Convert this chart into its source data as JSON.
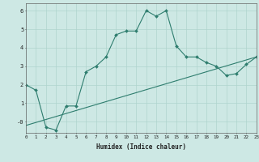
{
  "xlabel": "Humidex (Indice chaleur)",
  "line_color": "#2e7d6e",
  "bg_color": "#cde8e4",
  "grid_color": "#afd4ce",
  "curve1_x": [
    0,
    1,
    2,
    3,
    4,
    5,
    6,
    7,
    8,
    9,
    10,
    11,
    12,
    13,
    14,
    15,
    16,
    17,
    18,
    19,
    20,
    21,
    22,
    23
  ],
  "curve1_y": [
    2.0,
    1.7,
    -0.3,
    -0.45,
    0.85,
    0.85,
    2.7,
    3.0,
    3.5,
    4.7,
    4.9,
    4.9,
    6.0,
    5.7,
    6.0,
    4.1,
    3.5,
    3.5,
    3.2,
    3.0,
    2.5,
    2.6,
    3.1,
    3.5
  ],
  "curve2_x": [
    0,
    23
  ],
  "curve2_y": [
    -0.2,
    3.5
  ],
  "xlim": [
    0,
    23
  ],
  "ylim": [
    -0.6,
    6.4
  ],
  "xtick_labels": [
    "0",
    "1",
    "2",
    "3",
    "4",
    "5",
    "6",
    "7",
    "8",
    "9",
    "10",
    "11",
    "12",
    "13",
    "14",
    "15",
    "16",
    "17",
    "18",
    "19",
    "20",
    "21",
    "22",
    "23"
  ],
  "ytick_vals": [
    0,
    1,
    2,
    3,
    4,
    5,
    6
  ],
  "ytick_labels": [
    "-0",
    "1",
    "2",
    "3",
    "4",
    "5",
    "6"
  ]
}
